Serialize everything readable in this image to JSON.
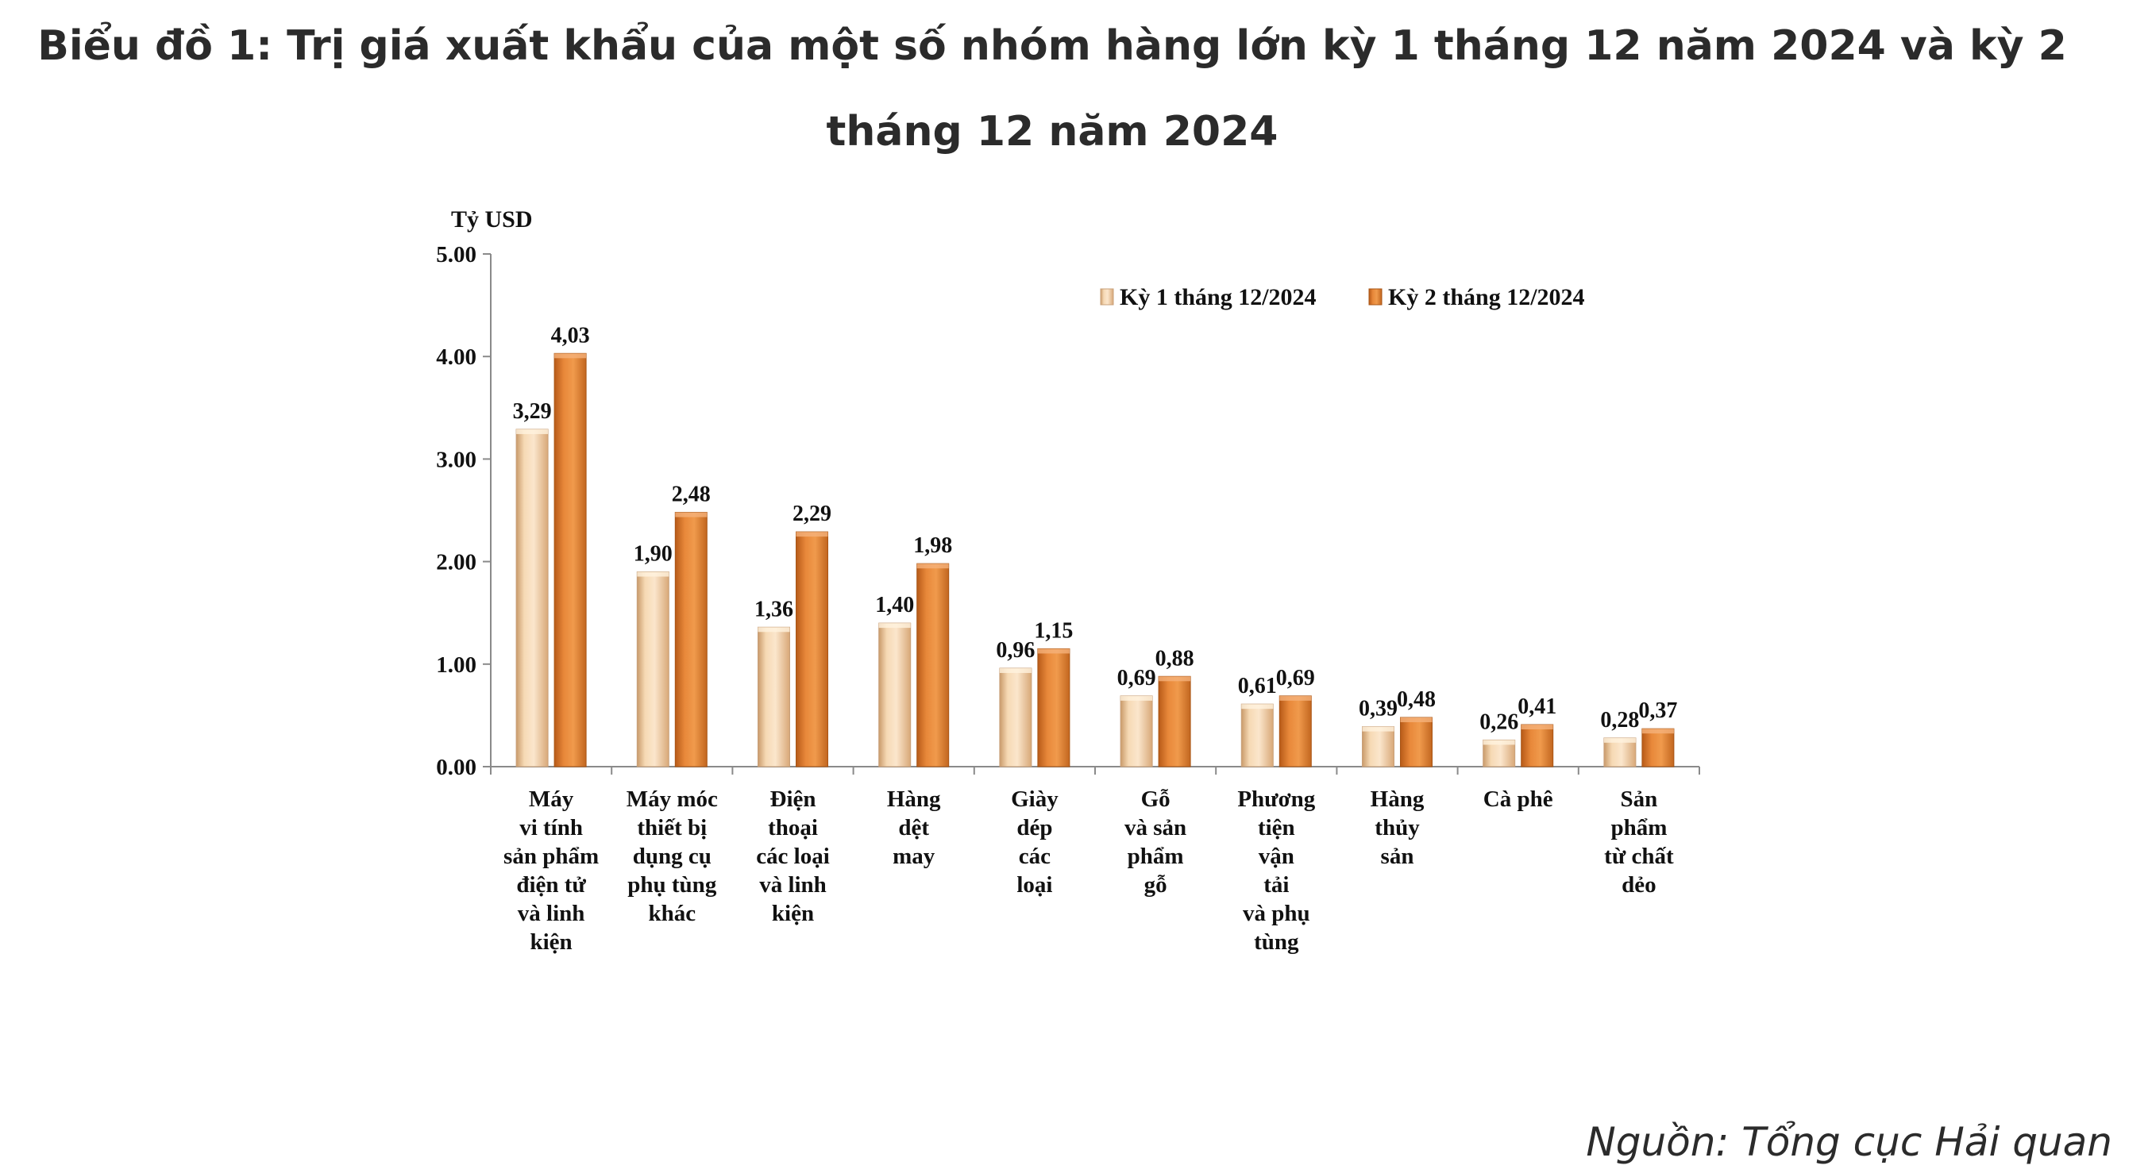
{
  "title": "Biểu đồ 1: Trị giá xuất khẩu của một số nhóm hàng lớn kỳ 1 tháng 12 năm 2024 và kỳ 2 tháng 12 năm 2024",
  "source": "Nguồn: Tổng cục Hải quan",
  "chart_data": {
    "type": "bar",
    "ylabel": "Tỷ USD",
    "ylim": [
      0,
      5
    ],
    "yticks": [
      "0.00",
      "1.00",
      "2.00",
      "3.00",
      "4.00",
      "5.00"
    ],
    "legend_position": "top-right",
    "grid": false,
    "categories": [
      [
        "Máy",
        "vi tính",
        "sản phẩm",
        "điện tử",
        "và linh",
        "kiện"
      ],
      [
        "Máy móc",
        "thiết bị",
        "dụng cụ",
        "phụ tùng",
        "khác"
      ],
      [
        "Điện",
        "thoại",
        "các loại",
        "và linh",
        "kiện"
      ],
      [
        "Hàng",
        "dệt",
        "may"
      ],
      [
        "Giày",
        "dép",
        "các",
        "loại"
      ],
      [
        "Gỗ",
        "và sản",
        "phẩm",
        "gỗ"
      ],
      [
        "Phương",
        "tiện",
        "vận",
        "tải",
        "và phụ",
        "tùng"
      ],
      [
        "Hàng",
        "thủy",
        "sản"
      ],
      [
        "Cà phê"
      ],
      [
        "Sản",
        "phẩm",
        "từ chất",
        "dẻo"
      ]
    ],
    "series": [
      {
        "name": "Kỳ 1 tháng 12/2024",
        "color": "#f0c89a",
        "values": [
          3.29,
          1.9,
          1.36,
          1.4,
          0.96,
          0.69,
          0.61,
          0.39,
          0.26,
          0.28
        ],
        "labels": [
          "3,29",
          "1,90",
          "1,36",
          "1,40",
          "0,96",
          "0,69",
          "0,61",
          "0,39",
          "0,26",
          "0,28"
        ]
      },
      {
        "name": "Kỳ 2 tháng 12/2024",
        "color": "#e07a2a",
        "values": [
          4.03,
          2.48,
          2.29,
          1.98,
          1.15,
          0.88,
          0.69,
          0.48,
          0.41,
          0.37
        ],
        "labels": [
          "4,03",
          "2,48",
          "2,29",
          "1,98",
          "1,15",
          "0,88",
          "0,69",
          "0,48",
          "0,41",
          "0,37"
        ]
      }
    ]
  }
}
